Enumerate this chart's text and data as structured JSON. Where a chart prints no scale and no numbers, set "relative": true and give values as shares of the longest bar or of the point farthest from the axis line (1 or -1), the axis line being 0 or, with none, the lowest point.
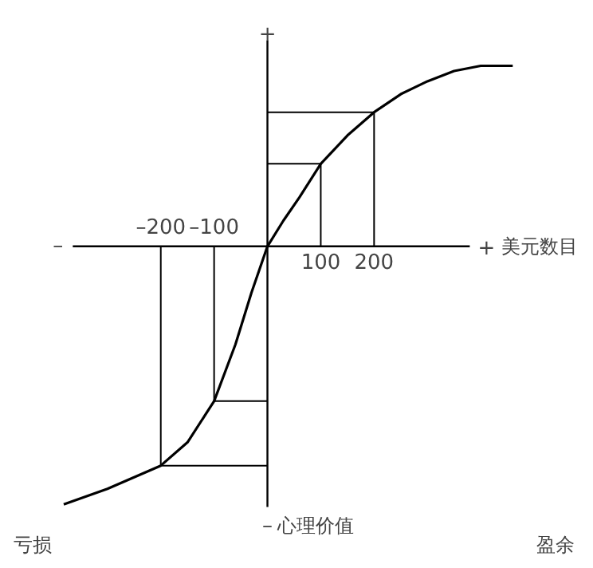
{
  "chart_data": {
    "type": "line",
    "relative": true,
    "xlim": [
      -500,
      612
    ],
    "xticks": [
      {
        "value": -200,
        "label": "–200"
      },
      {
        "value": -100,
        "label": "–100"
      }
    ],
    "annotations": [
      "+",
      "+",
      "–",
      "–",
      "美元数目",
      "心理价值",
      "亏损",
      "盈余",
      {
        "text": "100",
        "x": 100,
        "y": 0
      },
      {
        "text": "200",
        "x": 200,
        "y": 0
      }
    ],
    "series": [
      {
        "color": "#000000",
        "x": [
          -382,
          -300,
          -200,
          -150,
          -100,
          -60,
          -30,
          0,
          30,
          60,
          100,
          150,
          200,
          250,
          300,
          350,
          400,
          460
        ],
        "values": [
          -1,
          -0.94,
          -0.85,
          -0.76,
          -0.6,
          -0.38,
          -0.18,
          0,
          0.1,
          0.19,
          0.32,
          0.43,
          0.52,
          0.59,
          0.64,
          0.68,
          0.7,
          0.7
        ]
      },
      {
        "color": "#000000",
        "x": [
          100,
          100,
          0
        ],
        "values": [
          0,
          0.32,
          0.32
        ]
      },
      {
        "color": "#000000",
        "x": [
          200,
          200,
          0
        ],
        "values": [
          0,
          0.52,
          0.52
        ]
      },
      {
        "color": "#000000",
        "x": [
          -100,
          -100,
          0
        ],
        "values": [
          0,
          -0.6,
          -0.6
        ]
      },
      {
        "color": "#000000",
        "x": [
          -200,
          -200,
          0
        ],
        "values": [
          0,
          -0.85,
          -0.85
        ]
      }
    ]
  }
}
